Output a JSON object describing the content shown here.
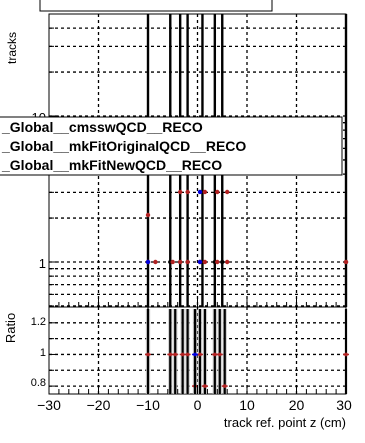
{
  "chart_data": [
    {
      "type": "scatter",
      "panel": "main",
      "title_banner": "",
      "ylabel": "tracks",
      "xlim": [
        -30,
        30
      ],
      "y_tick_labels": [
        "10",
        "1"
      ],
      "grid": true,
      "legend_placement": "middle-left",
      "legend": [
        {
          "label": "_Global__cmsswQCD__RECO",
          "color": "#000000"
        },
        {
          "label": "_Global__mkFitOriginalQCD__RECO",
          "color": "#b22222"
        },
        {
          "label": "_Global__mkFitNewQCD__RECO",
          "color": "#0000dd"
        }
      ],
      "series": [
        {
          "name": "_Global__cmsswQCD__RECO",
          "color": "#000000",
          "x": [
            -10,
            -5.5,
            -3.5,
            -2,
            1,
            3.5,
            5,
            30
          ],
          "y": [
            1,
            1,
            1,
            1,
            1,
            1,
            1,
            1
          ]
        },
        {
          "name": "_Global__mkFitOriginalQCD__RECO",
          "color": "#b22222",
          "x": [
            -10,
            -8.5,
            -5,
            -3.5,
            -2,
            0.5,
            1.5,
            4,
            6,
            30
          ],
          "y": [
            1,
            1,
            1,
            1,
            1,
            1,
            1,
            1,
            1,
            1
          ]
        },
        {
          "name": "_Global__mkFitNewQCD__RECO",
          "color": "#0000dd",
          "x": [
            -10,
            0.5
          ],
          "y": [
            1,
            1
          ]
        }
      ]
    },
    {
      "type": "scatter",
      "panel": "ratio",
      "ylabel": "Ratio",
      "xlabel": "track ref. point z (cm)",
      "xlim": [
        -30,
        30
      ],
      "ylim": [
        0.75,
        1.3
      ],
      "y_ticks": [
        0.8,
        1,
        1.2
      ],
      "y_tick_labels": [
        "0.8",
        "1",
        "1.2"
      ],
      "x_ticks": [
        -30,
        -20,
        -10,
        0,
        10,
        20,
        30
      ],
      "x_tick_labels": [
        "−30",
        "−20",
        "−10",
        "0",
        "10",
        "20",
        "30"
      ],
      "grid": true,
      "series": [
        {
          "name": "_Global__mkFitOriginalQCD__RECO",
          "color": "#b22222",
          "x": [
            -10,
            -5.5,
            -4.5,
            -3,
            -2,
            -0.5,
            0.5,
            1.5,
            3.5,
            4.5,
            5.5,
            30
          ],
          "y": [
            1,
            1,
            1,
            1,
            1,
            0.8,
            1,
            0.8,
            1,
            1,
            0.8,
            1
          ]
        },
        {
          "name": "_Global__mkFitNewQCD__RECO",
          "color": "#0000dd",
          "x": [
            -0.5
          ],
          "y": [
            1
          ]
        }
      ]
    }
  ]
}
